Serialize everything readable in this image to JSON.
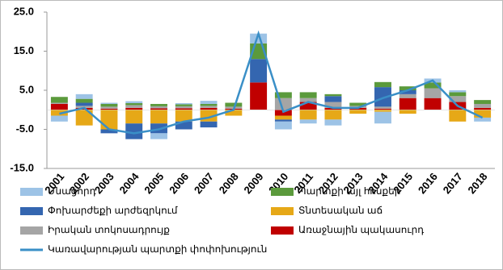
{
  "chart_data": {
    "type": "bar",
    "stacked": true,
    "categories": [
      "2001",
      "2002",
      "2003",
      "2004",
      "2005",
      "2006",
      "2007",
      "2008",
      "2009",
      "2010",
      "2011",
      "2012",
      "2013",
      "2014",
      "2015",
      "2016",
      "2017",
      "2018"
    ],
    "series": [
      {
        "name": "Մնացորդ",
        "color": "#9dc3e6",
        "values": [
          -1.5,
          1.2,
          0.3,
          0.5,
          -1.5,
          0.3,
          0.8,
          0,
          2.5,
          -2,
          -1,
          -1.5,
          0,
          -3,
          0,
          1,
          0.5,
          -1
        ]
      },
      {
        "name": "Պարտքի այլ հոսքեր",
        "color": "#5b9a3c",
        "values": [
          1.5,
          1,
          0.7,
          0.5,
          0.6,
          0.5,
          0.5,
          1,
          4,
          1.5,
          1.5,
          0.5,
          0.8,
          1.3,
          1,
          1.5,
          1,
          1
        ]
      },
      {
        "name": "Փոխարժեքի արժեզրկում",
        "color": "#3466b0",
        "values": [
          0,
          0.8,
          -1,
          -4,
          -2.5,
          -2,
          -1.5,
          0,
          6,
          -0.5,
          0,
          1.5,
          0,
          5,
          1,
          0,
          0,
          0
        ]
      },
      {
        "name": "Տնտեսական աճ",
        "color": "#e6a817",
        "values": [
          -1.5,
          -4,
          -5,
          -3.5,
          -3.5,
          -3,
          -3,
          -1.5,
          0,
          -1,
          -2.5,
          -2.5,
          -1,
          -0.5,
          -1,
          0,
          -3,
          -2
        ]
      },
      {
        "name": "Իրական տոկոսադրույք",
        "color": "#a5a5a5",
        "values": [
          0.3,
          0.5,
          0.5,
          0.7,
          0.5,
          0.5,
          0.5,
          0.5,
          0,
          3,
          1,
          1.5,
          0.5,
          0.5,
          1,
          2.5,
          1.5,
          1
        ]
      },
      {
        "name": "Առաջնային պակասուրդ",
        "color": "#c00000",
        "values": [
          1.5,
          0.5,
          0.3,
          0.5,
          0.4,
          0.4,
          0.5,
          0.3,
          7,
          -1.5,
          2,
          0.5,
          0.5,
          0.3,
          3,
          3,
          2,
          0.5
        ]
      }
    ],
    "line": {
      "name": "Կառավարության պարտքի փոփոխություն",
      "color": "#3a8fc7",
      "values": [
        -1,
        0.5,
        -5,
        -6,
        -5,
        -3,
        -2,
        0,
        19.5,
        -0.5,
        2,
        0.5,
        0.5,
        3,
        5,
        7.5,
        1,
        -2
      ]
    },
    "ylim": [
      -15,
      25
    ],
    "yticks": [
      {
        "value": -15,
        "label": "-15.0"
      },
      {
        "value": -5,
        "label": "-5.0"
      },
      {
        "value": 5,
        "label": "5.0"
      },
      {
        "value": 15,
        "label": "15.0"
      },
      {
        "value": 25,
        "label": "25.0"
      }
    ]
  }
}
